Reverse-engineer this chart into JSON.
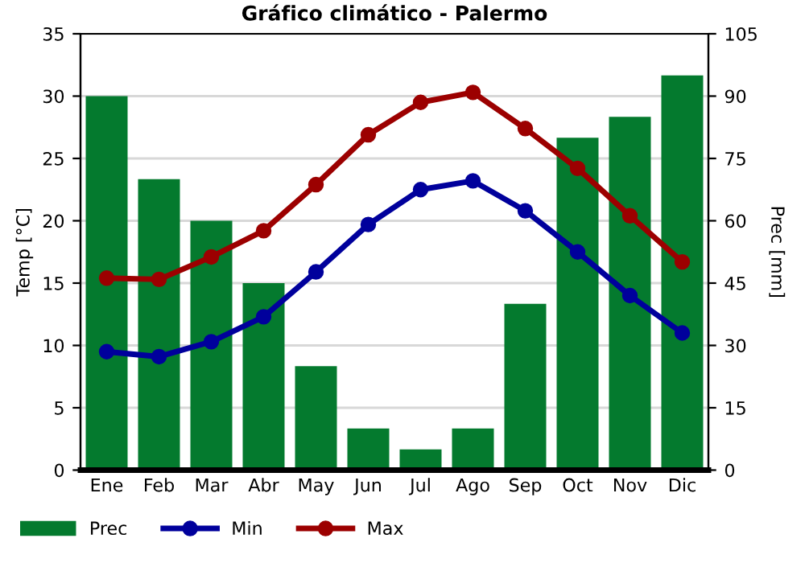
{
  "chart_data": {
    "type": "line",
    "title": "Gráfico climático - Palermo",
    "ylabel": "Temp [°C]",
    "y2label": "Prec [mm]",
    "categories": [
      "Ene",
      "Feb",
      "Mar",
      "Abr",
      "May",
      "Jun",
      "Jul",
      "Ago",
      "Sep",
      "Oct",
      "Nov",
      "Dic"
    ],
    "series": [
      {
        "name": "Prec",
        "type": "bar",
        "axis": "y2",
        "color": "#047a2e",
        "values": [
          90,
          70,
          60,
          45,
          25,
          10,
          5,
          10,
          40,
          80,
          85,
          95
        ]
      },
      {
        "name": "Min",
        "color": "#00009c",
        "values": [
          9.5,
          9.1,
          10.3,
          12.3,
          15.9,
          19.7,
          22.5,
          23.2,
          20.8,
          17.5,
          14.0,
          11.0
        ]
      },
      {
        "name": "Max",
        "color": "#9c0000",
        "values": [
          15.4,
          15.3,
          17.1,
          19.2,
          22.9,
          26.9,
          29.5,
          30.3,
          27.4,
          24.2,
          20.4,
          16.7
        ]
      }
    ],
    "ylim": [
      0,
      35
    ],
    "yticks": [
      0,
      5,
      10,
      15,
      20,
      25,
      30,
      35
    ],
    "y2lim": [
      0,
      105
    ],
    "y2ticks": [
      0,
      15,
      30,
      45,
      60,
      75,
      90,
      105
    ],
    "grid": true,
    "legend": "bottom",
    "marker": "circle",
    "line_style": "solid"
  }
}
